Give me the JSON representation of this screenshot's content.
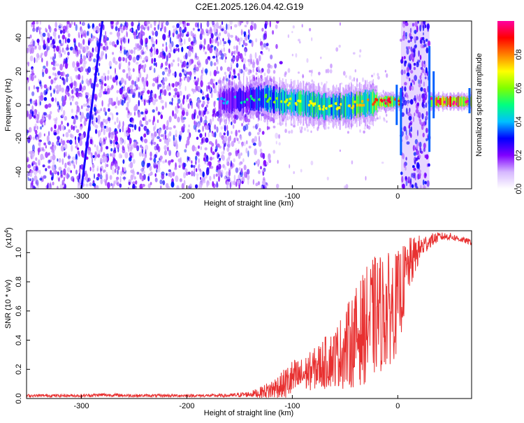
{
  "title": "C2E1.2025.126.04.42.G19",
  "colors": {
    "speckle": "#7a2cf0",
    "dense": "#5a00e0",
    "line": "#e83030",
    "axis": "#000000"
  },
  "chart_data": [
    {
      "type": "heatmap",
      "xlabel": "Height of straight line (km)",
      "ylabel": "Frequency (Hz)",
      "xlim": [
        -352,
        70
      ],
      "ylim": [
        -50,
        50
      ],
      "x_ticks": [
        -300,
        -200,
        -100,
        0
      ],
      "y_ticks": [
        -40,
        -20,
        0,
        20,
        40
      ],
      "colorbar": {
        "label": "Normalized spectral amplitude",
        "range": [
          0,
          1
        ],
        "ticks": [
          0.0,
          0.2,
          0.4,
          0.6,
          0.8
        ],
        "tick_labels": [
          "0.0",
          "0.2",
          "0.4",
          "0.6",
          "0.8"
        ],
        "colors": [
          "#ffffff",
          "#d6b8ff",
          "#8000ff",
          "#0000ff",
          "#00c0ff",
          "#00ff80",
          "#80ff00",
          "#ffff00",
          "#ff8000",
          "#ff0000",
          "#ff00a0"
        ]
      },
      "noise_region": {
        "x_from": -352,
        "x_to": -135,
        "y_from": -50,
        "y_to": 50
      },
      "signal_band": [
        {
          "x": -170,
          "y": 2,
          "amp": 0.22
        },
        {
          "x": -150,
          "y": 3,
          "amp": 0.3
        },
        {
          "x": -125,
          "y": 4,
          "amp": 0.42
        },
        {
          "x": -110,
          "y": 2,
          "amp": 0.5
        },
        {
          "x": -90,
          "y": 1,
          "amp": 0.55
        },
        {
          "x": -70,
          "y": -1,
          "amp": 0.55
        },
        {
          "x": -50,
          "y": -1,
          "amp": 0.55
        },
        {
          "x": -30,
          "y": 1,
          "amp": 0.62
        },
        {
          "x": -10,
          "y": 2,
          "amp": 0.82
        },
        {
          "x": -2,
          "y": 2,
          "amp": 0.7
        },
        {
          "x": 40,
          "y": 2,
          "amp": 0.9
        },
        {
          "x": 70,
          "y": 2,
          "amp": 0.92
        }
      ],
      "bursts": [
        {
          "x_from": 3,
          "x_to": 30
        }
      ],
      "diagonal_trace": {
        "x": [
          -300,
          -280
        ],
        "y": [
          -50,
          50
        ]
      }
    },
    {
      "type": "line",
      "xlabel": "Height of straight line (km)",
      "ylabel": "SNR (10 * v/v)",
      "multiplier": "(x10",
      "multiplier_exp": "4",
      "xlim": [
        -352,
        70
      ],
      "ylim": [
        0,
        1.15
      ],
      "x_ticks": [
        -300,
        -200,
        -100,
        0
      ],
      "y_ticks": [
        0.0,
        0.2,
        0.4,
        0.6,
        0.8,
        1.0
      ],
      "y_tick_labels": [
        "0.0",
        "0.2",
        "0.4",
        "0.6",
        "0.8",
        "1.0"
      ],
      "series": [
        {
          "x": [
            -352,
            -320,
            -300,
            -280,
            -250,
            -220,
            -200,
            -180,
            -160,
            -140,
            -130,
            -120,
            -110,
            -100,
            -90,
            -80,
            -70,
            -60,
            -50,
            -40,
            -30,
            -20,
            -10,
            0,
            10,
            20,
            30,
            40,
            50,
            60,
            70
          ],
          "y": [
            0.02,
            0.02,
            0.02,
            0.025,
            0.02,
            0.02,
            0.02,
            0.02,
            0.02,
            0.03,
            0.04,
            0.06,
            0.09,
            0.13,
            0.16,
            0.2,
            0.24,
            0.28,
            0.34,
            0.42,
            0.5,
            0.58,
            0.6,
            0.66,
            0.9,
            1.02,
            1.08,
            1.11,
            1.11,
            1.09,
            1.07
          ],
          "spread": [
            0.01,
            0.01,
            0.01,
            0.012,
            0.01,
            0.01,
            0.01,
            0.01,
            0.012,
            0.02,
            0.04,
            0.07,
            0.1,
            0.14,
            0.12,
            0.14,
            0.18,
            0.2,
            0.28,
            0.34,
            0.4,
            0.42,
            0.4,
            0.35,
            0.2,
            0.1,
            0.05,
            0.03,
            0.025,
            0.02,
            0.02
          ]
        }
      ]
    }
  ]
}
